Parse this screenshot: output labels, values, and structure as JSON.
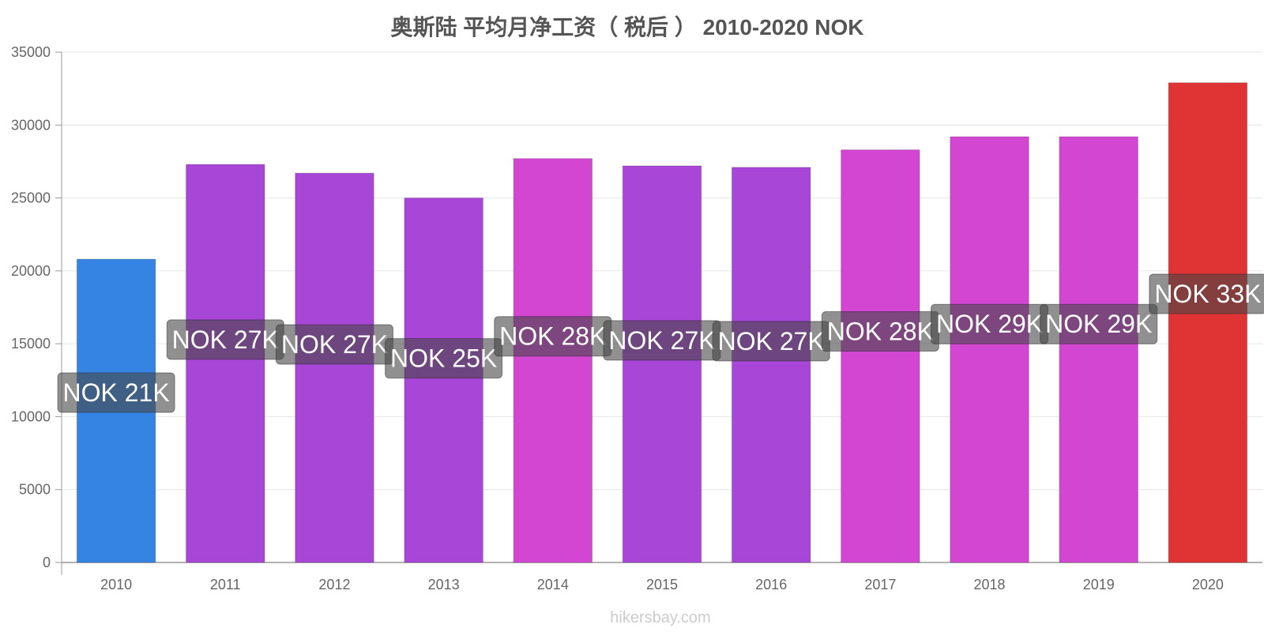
{
  "chart_data": {
    "type": "bar",
    "title": "奥斯陆 平均月净工资（ 税后 ） 2010-2020 NOK",
    "categories": [
      "2010",
      "2011",
      "2012",
      "2013",
      "2014",
      "2015",
      "2016",
      "2017",
      "2018",
      "2019",
      "2020"
    ],
    "values": [
      20800,
      27300,
      26700,
      25000,
      27700,
      27200,
      27100,
      28300,
      29200,
      29200,
      32900
    ],
    "data_labels": [
      "NOK 21K",
      "NOK 27K",
      "NOK 27K",
      "NOK 25K",
      "NOK 28K",
      "NOK 27K",
      "NOK 27K",
      "NOK 28K",
      "NOK 29K",
      "NOK 29K",
      "NOK 33K"
    ],
    "bar_colors": [
      "#3584e4",
      "#a846d8",
      "#a846d8",
      "#a846d8",
      "#d246d2",
      "#a846d8",
      "#a846d8",
      "#d246d2",
      "#d246d2",
      "#d246d2",
      "#e03434"
    ],
    "label_box_colors": [
      "#1e3f6e",
      "#5a2a7a",
      "#5a2a7a",
      "#5a2a7a",
      "#6e2a72",
      "#5a2a7a",
      "#5a2a7a",
      "#6e2a72",
      "#6e2a72",
      "#6e2a72",
      "#6e1c1c"
    ],
    "ylim": [
      0,
      35000
    ],
    "yticks": [
      0,
      5000,
      10000,
      15000,
      20000,
      25000,
      30000,
      35000
    ],
    "grid": true,
    "legend": "none"
  },
  "watermark": "hikersbay.com"
}
